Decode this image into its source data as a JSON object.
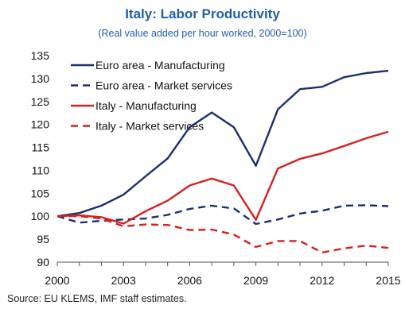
{
  "chart_data": {
    "type": "line",
    "title": "Italy: Labor Productivity",
    "subtitle": "(Real value added per hour worked, 2000=100)",
    "source": "Source: EU KLEMS, IMF staff estimates.",
    "xlabel": "",
    "ylabel": "",
    "x": [
      2000,
      2001,
      2002,
      2003,
      2004,
      2005,
      2006,
      2007,
      2008,
      2009,
      2010,
      2011,
      2012,
      2013,
      2014,
      2015
    ],
    "x_ticks": [
      2000,
      2003,
      2006,
      2009,
      2012,
      2015
    ],
    "xlim": [
      2000,
      2015
    ],
    "ylim": [
      90,
      135
    ],
    "y_ticks": [
      90,
      95,
      100,
      105,
      110,
      115,
      120,
      125,
      130,
      135
    ],
    "grid": false,
    "legend_position": "top-left",
    "series": [
      {
        "name": "Euro area - Manufacturing",
        "color": "#1a2f6e",
        "dash": "solid",
        "values": [
          100.0,
          100.7,
          102.3,
          104.7,
          108.7,
          112.6,
          119.4,
          122.6,
          119.4,
          111.0,
          123.3,
          127.7,
          128.2,
          130.3,
          131.2,
          131.7
        ]
      },
      {
        "name": "Euro area - Market services",
        "color": "#1a2f6e",
        "dash": "dashed",
        "values": [
          100.0,
          98.6,
          99.0,
          99.3,
          99.5,
          100.3,
          101.6,
          102.3,
          101.7,
          98.3,
          99.3,
          100.6,
          101.2,
          102.3,
          102.4,
          102.2
        ]
      },
      {
        "name": "Italy - Manufacturing",
        "color": "#d42020",
        "dash": "solid",
        "values": [
          100.0,
          100.2,
          99.8,
          98.4,
          101.1,
          103.4,
          106.7,
          108.2,
          106.7,
          99.2,
          110.4,
          112.5,
          113.7,
          115.3,
          117.0,
          118.4
        ]
      },
      {
        "name": "Italy - Market services",
        "color": "#d42020",
        "dash": "dashed",
        "values": [
          100.0,
          100.0,
          99.5,
          97.8,
          98.2,
          98.1,
          97.0,
          97.1,
          96.0,
          93.3,
          94.6,
          94.6,
          92.1,
          93.0,
          93.6,
          93.1
        ]
      }
    ]
  }
}
